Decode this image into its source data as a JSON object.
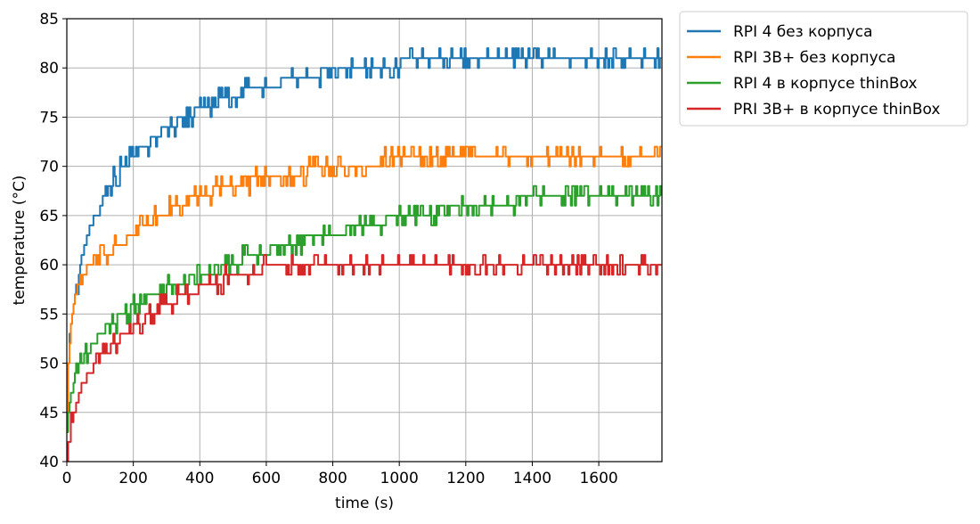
{
  "chart_data": {
    "type": "line",
    "title": "",
    "xlabel": "time (s)",
    "ylabel": "temperature (°C)",
    "xlim": [
      0,
      1790
    ],
    "ylim": [
      40,
      85
    ],
    "x_ticks": [
      0,
      200,
      400,
      600,
      800,
      1000,
      1200,
      1400,
      1600
    ],
    "y_ticks": [
      40,
      45,
      50,
      55,
      60,
      65,
      70,
      75,
      80,
      85
    ],
    "grid": true,
    "legend_position": "outside-top-right",
    "series": [
      {
        "name": "RPI 4 без корпуса",
        "color": "#1f77b4",
        "x": [
          0,
          5,
          10,
          20,
          30,
          40,
          50,
          60,
          80,
          100,
          120,
          140,
          160,
          180,
          200,
          220,
          240,
          260,
          280,
          300,
          330,
          360,
          400,
          440,
          480,
          520,
          560,
          600,
          650,
          700,
          750,
          800,
          850,
          900,
          950,
          1000,
          1050,
          1100,
          1150,
          1200,
          1250,
          1300,
          1350,
          1400,
          1450,
          1500,
          1550,
          1600,
          1650,
          1700,
          1750,
          1790
        ],
        "values": [
          45,
          51,
          53.5,
          56,
          58,
          60,
          61.5,
          63,
          64.5,
          66,
          67.3,
          68.5,
          69.5,
          70.3,
          71,
          71.6,
          72.2,
          72.8,
          73.3,
          73.8,
          74.5,
          75.2,
          75.9,
          76.5,
          77,
          77.4,
          77.8,
          78.2,
          78.6,
          79,
          79.4,
          79.7,
          80,
          80.2,
          80.4,
          80.5,
          80.6,
          80.7,
          80.8,
          80.8,
          80.9,
          80.9,
          81,
          81,
          81,
          81,
          81,
          81.1,
          81.1,
          81.1,
          81.1,
          81.1
        ]
      },
      {
        "name": "RPI 3B+ без корпуса",
        "color": "#ff7f0e",
        "x": [
          0,
          5,
          10,
          20,
          30,
          40,
          60,
          80,
          100,
          130,
          160,
          200,
          240,
          280,
          320,
          360,
          400,
          450,
          500,
          550,
          600,
          650,
          700,
          750,
          800,
          850,
          900,
          950,
          1000,
          1050,
          1100,
          1150,
          1200,
          1250,
          1300,
          1350,
          1400,
          1450,
          1500,
          1550,
          1600,
          1650,
          1700,
          1750,
          1790
        ],
        "values": [
          44,
          50,
          53,
          56,
          57.5,
          58.5,
          59.5,
          60,
          60.5,
          61.3,
          62,
          63,
          64,
          65,
          65.8,
          66.4,
          67,
          67.6,
          68.1,
          68.5,
          68.8,
          69.1,
          69.4,
          69.7,
          69.9,
          70.1,
          70.3,
          70.5,
          70.6,
          70.7,
          70.8,
          70.9,
          71,
          71,
          71.1,
          71.1,
          71.2,
          71.2,
          71.2,
          71.1,
          71.1,
          71,
          71,
          71,
          71
        ]
      },
      {
        "name": "RPI 4 в корпусе thinBox",
        "color": "#2ca02c",
        "x": [
          0,
          5,
          10,
          20,
          30,
          40,
          60,
          80,
          100,
          130,
          160,
          200,
          240,
          280,
          320,
          360,
          400,
          450,
          500,
          550,
          600,
          650,
          700,
          750,
          800,
          850,
          900,
          950,
          1000,
          1050,
          1100,
          1150,
          1200,
          1250,
          1300,
          1350,
          1400,
          1450,
          1500,
          1550,
          1600,
          1650,
          1700,
          1750,
          1790
        ],
        "values": [
          43,
          45,
          46.5,
          48,
          49,
          50,
          51,
          52,
          53,
          54,
          54.8,
          55.7,
          56.5,
          57.2,
          57.8,
          58.4,
          59,
          59.6,
          60.2,
          60.8,
          61.4,
          61.9,
          62.4,
          62.8,
          63.2,
          63.6,
          64,
          64.4,
          64.8,
          65.1,
          65.4,
          65.7,
          65.9,
          66.1,
          66.3,
          66.5,
          66.6,
          66.8,
          66.9,
          67,
          67.1,
          67.2,
          67.3,
          67.3,
          67.4
        ]
      },
      {
        "name": "PRI 3B+ в корпусе thinBox",
        "color": "#d62728",
        "x": [
          0,
          5,
          10,
          20,
          30,
          40,
          60,
          80,
          100,
          130,
          160,
          200,
          240,
          280,
          320,
          360,
          400,
          450,
          500,
          550,
          600,
          650,
          700,
          750,
          800,
          850,
          900,
          950,
          1000,
          1100,
          1200,
          1300,
          1400,
          1500,
          1600,
          1700,
          1790
        ],
        "values": [
          40,
          42,
          43.5,
          45,
          46,
          47,
          48.5,
          49.5,
          50.5,
          51.5,
          52.5,
          53.5,
          54.5,
          55.5,
          56.3,
          57,
          57.6,
          58.2,
          58.8,
          59.3,
          59.6,
          59.8,
          59.9,
          60,
          60,
          60,
          60,
          60,
          60,
          60,
          60,
          60,
          60,
          60,
          60,
          60,
          60
        ]
      }
    ]
  }
}
